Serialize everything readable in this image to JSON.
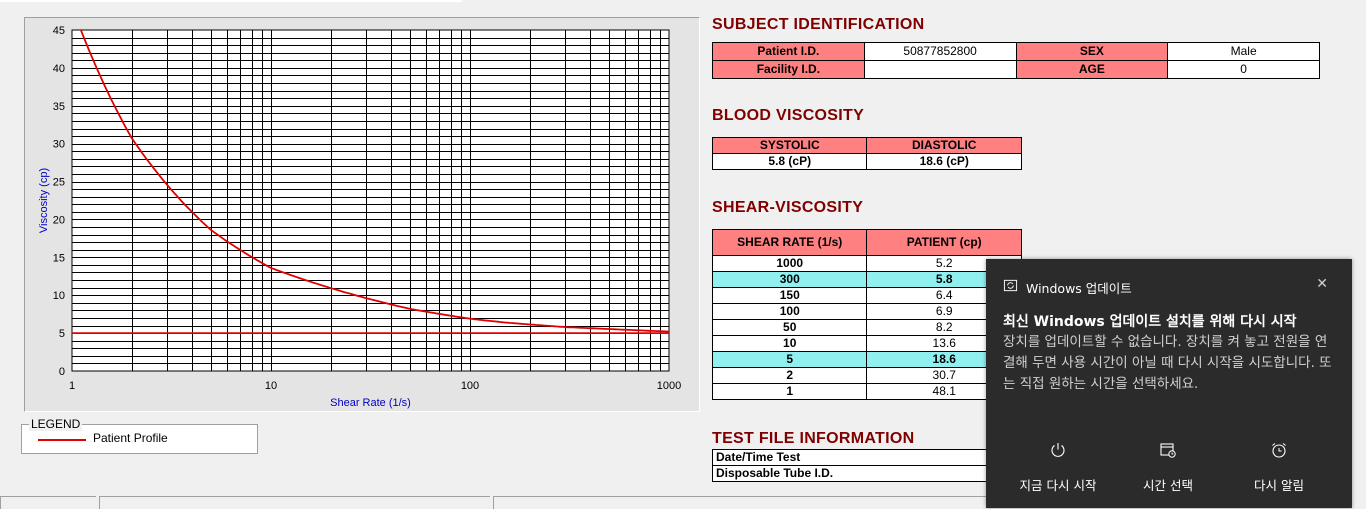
{
  "chart_data": {
    "type": "line",
    "xscale": "log",
    "xlim": [
      1,
      1000
    ],
    "ylim": [
      0,
      45
    ],
    "xticks": [
      "1",
      "10",
      "100",
      "1000"
    ],
    "yticks": [
      "0",
      "5",
      "10",
      "15",
      "20",
      "25",
      "30",
      "35",
      "40",
      "45"
    ],
    "xlabel": "Shear Rate (1/s)",
    "ylabel": "Viscosity (cp)",
    "grid": true,
    "series": [
      {
        "name": "Patient Profile",
        "color": "#e00000",
        "x": [
          1,
          2,
          5,
          10,
          50,
          100,
          150,
          300,
          1000
        ],
        "y": [
          48.1,
          30.7,
          18.6,
          13.6,
          8.2,
          6.9,
          6.4,
          5.8,
          5.2
        ]
      }
    ],
    "reference_lines": [
      {
        "y": 5,
        "color": "#e00000"
      }
    ]
  },
  "legend": {
    "title": "LEGEND",
    "entry": "Patient Profile"
  },
  "subject": {
    "title": "SUBJECT IDENTIFICATION",
    "patient_id_label": "Patient I.D.",
    "patient_id": "50877852800",
    "sex_label": "SEX",
    "sex": "Male",
    "facility_label": "Facility I.D.",
    "facility": "",
    "age_label": "AGE",
    "age": "0"
  },
  "blood": {
    "title": "BLOOD VISCOSITY",
    "systolic_label": "SYSTOLIC",
    "diastolic_label": "DIASTOLIC",
    "systolic": "5.8 (cP)",
    "diastolic": "18.6 (cP)"
  },
  "shear": {
    "title": "SHEAR-VISCOSITY",
    "col1": "SHEAR RATE (1/s)",
    "col2": "PATIENT (cp)",
    "rows": [
      {
        "rate": "1000",
        "value": "5.2"
      },
      {
        "rate": "300",
        "value": "5.8"
      },
      {
        "rate": "150",
        "value": "6.4"
      },
      {
        "rate": "100",
        "value": "6.9"
      },
      {
        "rate": "50",
        "value": "8.2"
      },
      {
        "rate": "10",
        "value": "13.6"
      },
      {
        "rate": "5",
        "value": "18.6"
      },
      {
        "rate": "2",
        "value": "30.7"
      },
      {
        "rate": "1",
        "value": "48.1"
      }
    ]
  },
  "testfile": {
    "title": "TEST FILE INFORMATION",
    "date_label": "Date/Time Test",
    "tube_label": "Disposable Tube I.D."
  },
  "toast": {
    "app": "Windows 업데이트",
    "heading": "최신 Windows 업데이트 설치를 위해 다시 시작",
    "body": "장치를 업데이트할 수 없습니다. 장치를 켜 놓고 전원을 연결해 두면 사용 시간이 아닐 때 다시 시작을 시도합니다. 또는 직접 원하는 시간을 선택하세요.",
    "btn_restart": "지금 다시 시작",
    "btn_schedule": "시간 선택",
    "btn_snooze": "다시 알림",
    "close_icon": "close-icon"
  }
}
